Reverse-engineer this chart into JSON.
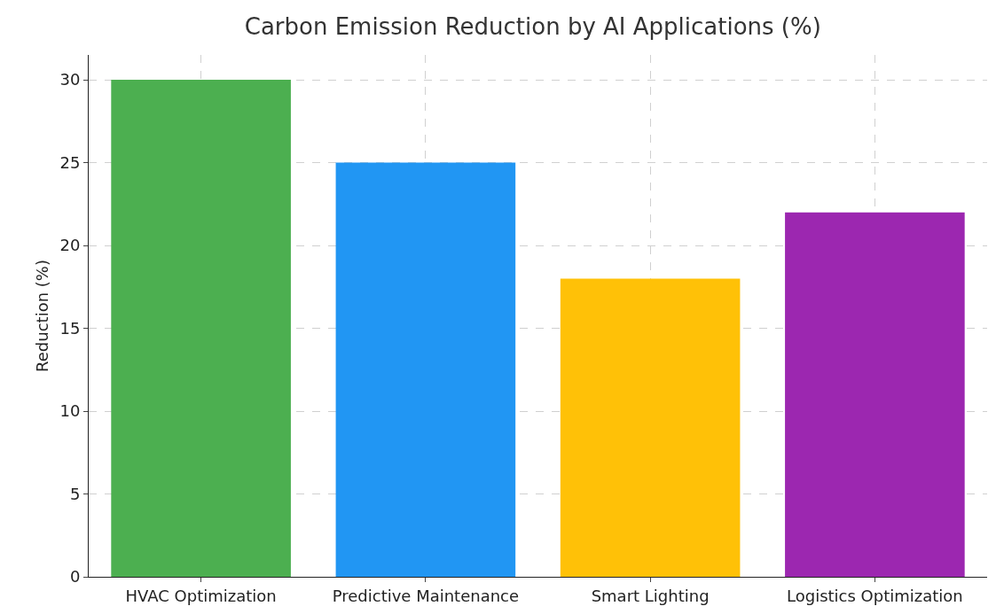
{
  "chart_data": {
    "type": "bar",
    "title": "Carbon Emission Reduction by AI Applications (%)",
    "ylabel": "Reduction (%)",
    "categories": [
      "HVAC Optimization",
      "Predictive Maintenance",
      "Smart Lighting",
      "Logistics Optimization"
    ],
    "values": [
      30,
      25,
      18,
      22
    ],
    "colors": [
      "#4caf50",
      "#2196f3",
      "#ffc107",
      "#9c27b0"
    ],
    "ylim": [
      0,
      31.5
    ],
    "yticks": [
      0,
      5,
      10,
      15,
      20,
      25,
      30
    ],
    "grid": true
  }
}
